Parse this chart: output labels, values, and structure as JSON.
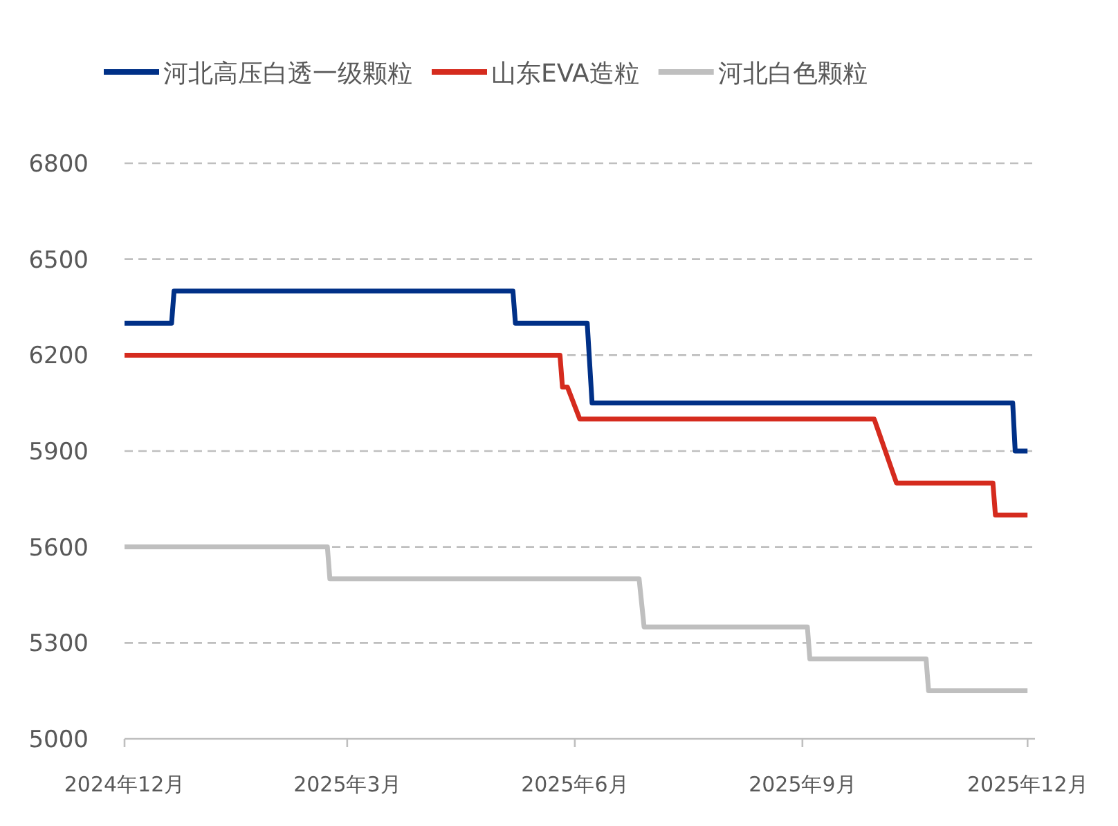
{
  "chart_data": {
    "type": "line",
    "legend": "top",
    "grid": "y",
    "marker": "none",
    "line_style": "solid",
    "xlim": [
      "2024-12-01",
      "2025-12-04"
    ],
    "ylim": [
      5000,
      6800
    ],
    "yticks": [
      5000,
      5300,
      5600,
      5900,
      6200,
      6500,
      6800
    ],
    "xticks": [
      {
        "value": "2024-12-01",
        "label": "2024年12月"
      },
      {
        "value": "2025-03-01",
        "label": "2025年3月"
      },
      {
        "value": "2025-06-01",
        "label": "2025年6月"
      },
      {
        "value": "2025-09-01",
        "label": "2025年9月"
      },
      {
        "value": "2025-12-01",
        "label": "2025年12月"
      }
    ],
    "series": [
      {
        "name": "河北高压白透一级颗粒",
        "color": "#003087",
        "x": [
          "2024-12-01",
          "2024-12-20",
          "2024-12-21",
          "2025-05-07",
          "2025-05-08",
          "2025-06-06",
          "2025-06-08",
          "2025-11-25",
          "2025-11-26",
          "2025-12-01"
        ],
        "values": [
          6300,
          6300,
          6400,
          6400,
          6300,
          6300,
          6050,
          6050,
          5900,
          5900
        ]
      },
      {
        "name": "山东EVA造粒",
        "color": "#d52b1e",
        "x": [
          "2024-12-01",
          "2025-05-26",
          "2025-05-27",
          "2025-05-29",
          "2025-06-03",
          "2025-09-30",
          "2025-10-09",
          "2025-11-17",
          "2025-11-18",
          "2025-12-01"
        ],
        "values": [
          6200,
          6200,
          6100,
          6100,
          6000,
          6000,
          5800,
          5800,
          5700,
          5700
        ]
      },
      {
        "name": "河北白色颗粒",
        "color": "#bfbfbf",
        "x": [
          "2024-12-01",
          "2025-02-21",
          "2025-02-22",
          "2025-06-27",
          "2025-06-29",
          "2025-09-03",
          "2025-09-04",
          "2025-10-21",
          "2025-10-22",
          "2025-12-01"
        ],
        "values": [
          5600,
          5600,
          5500,
          5500,
          5350,
          5350,
          5250,
          5250,
          5150,
          5150
        ]
      }
    ]
  }
}
